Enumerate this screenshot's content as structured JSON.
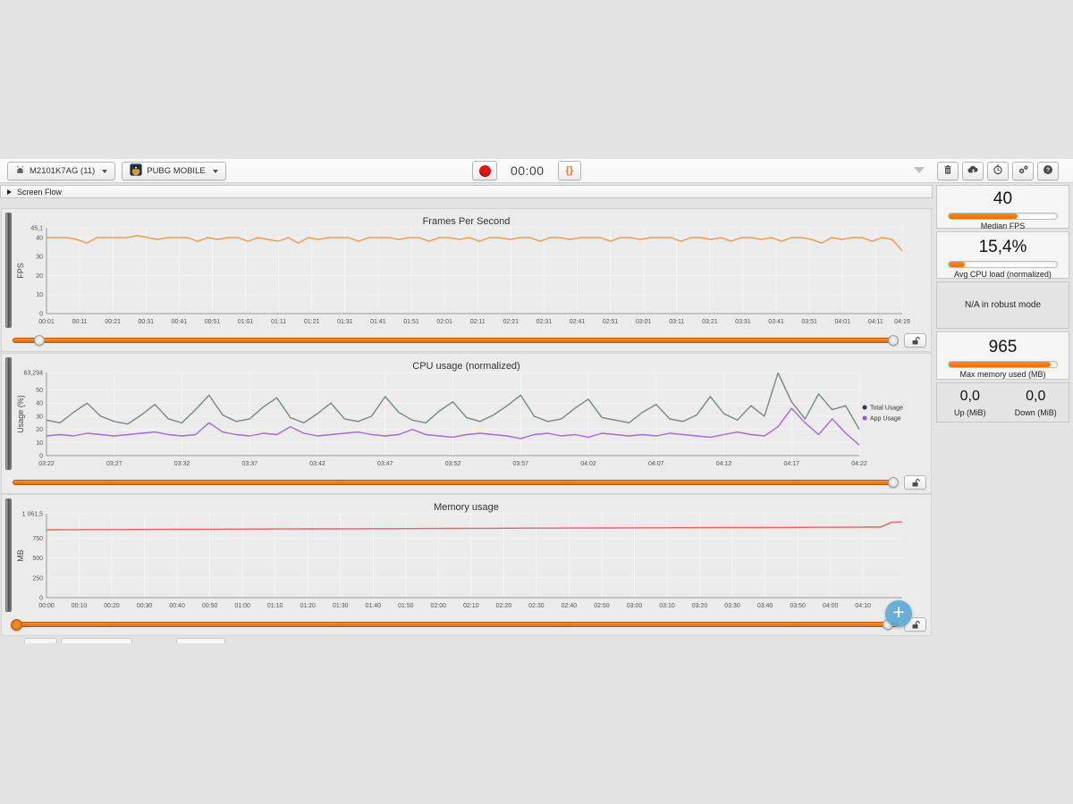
{
  "toolbar": {
    "device_label": "M2101K7AG (11)",
    "app_label": "PUBG MOBILE",
    "timer": "00:00",
    "braces_label": "{}",
    "right_icons": [
      "trash",
      "cloud-upload",
      "clock",
      "gears",
      "help"
    ]
  },
  "screen_flow": {
    "label": "Screen Flow"
  },
  "sidebar": {
    "cards": [
      {
        "value": "40",
        "label": "Median FPS",
        "progress": 64
      },
      {
        "value": "15,4%",
        "label": "Avg CPU load (normalized)",
        "progress": 15
      },
      {
        "message": "N/A in robust mode"
      },
      {
        "value": "965",
        "label": "Max memory used (MB)",
        "progress": 94
      },
      {
        "cols": [
          {
            "value": "0,0",
            "label": "Up (MiB)"
          },
          {
            "value": "0,0",
            "label": "Down (MiB)"
          }
        ]
      }
    ]
  },
  "accent_color": "#ef6c00",
  "chart_data": [
    {
      "type": "line",
      "title": "Frames Per Second",
      "ylabel": "FPS",
      "ylim": [
        0,
        45.1
      ],
      "yticks": [
        {
          "label": "45,1",
          "v": 45.1
        },
        {
          "label": "40",
          "v": 40
        },
        {
          "label": "30",
          "v": 30
        },
        {
          "label": "20",
          "v": 20
        },
        {
          "label": "10",
          "v": 10
        },
        {
          "label": "0",
          "v": 0
        }
      ],
      "xlim": [
        1,
        259
      ],
      "xticks": [
        {
          "label": "00:01",
          "t": 1
        },
        {
          "label": "00:11",
          "t": 11
        },
        {
          "label": "00:21",
          "t": 21
        },
        {
          "label": "00:31",
          "t": 31
        },
        {
          "label": "00:41",
          "t": 41
        },
        {
          "label": "00:51",
          "t": 51
        },
        {
          "label": "01:01",
          "t": 61
        },
        {
          "label": "01:11",
          "t": 71
        },
        {
          "label": "01:21",
          "t": 81
        },
        {
          "label": "01:31",
          "t": 91
        },
        {
          "label": "01:41",
          "t": 101
        },
        {
          "label": "01:51",
          "t": 111
        },
        {
          "label": "02:01",
          "t": 121
        },
        {
          "label": "02:11",
          "t": 131
        },
        {
          "label": "02:21",
          "t": 141
        },
        {
          "label": "02:31",
          "t": 151
        },
        {
          "label": "02:41",
          "t": 161
        },
        {
          "label": "02:51",
          "t": 171
        },
        {
          "label": "03:01",
          "t": 181
        },
        {
          "label": "03:11",
          "t": 191
        },
        {
          "label": "03:21",
          "t": 201
        },
        {
          "label": "03:31",
          "t": 211
        },
        {
          "label": "03:41",
          "t": 221
        },
        {
          "label": "03:51",
          "t": 231
        },
        {
          "label": "04:01",
          "t": 241
        },
        {
          "label": "04:11",
          "t": 251
        },
        {
          "label": "04:19",
          "t": 259
        }
      ],
      "grid": true,
      "legend": null,
      "series": [
        {
          "name": "FPS",
          "color": "#f79646",
          "values": [
            40,
            40,
            40,
            39,
            37,
            40,
            40,
            40,
            40,
            41,
            40,
            39,
            40,
            40,
            40,
            38,
            40,
            39,
            40,
            40,
            38,
            40,
            39,
            38,
            40,
            37,
            40,
            39,
            40,
            40,
            40,
            38,
            40,
            40,
            40,
            39,
            40,
            40,
            38,
            40,
            40,
            39,
            40,
            38,
            40,
            40,
            39,
            40,
            40,
            38,
            40,
            40,
            39,
            40,
            40,
            40,
            38,
            40,
            40,
            39,
            40,
            40,
            40,
            38,
            40,
            40,
            39,
            40,
            38,
            40,
            40,
            39,
            40,
            38,
            40,
            40,
            39,
            37,
            40,
            39,
            40,
            40,
            38,
            40,
            39,
            33
          ]
        }
      ]
    },
    {
      "type": "line",
      "title": "CPU usage (normalized)",
      "ylabel": "Usage (%)",
      "ylim": [
        0,
        63.294
      ],
      "yticks": [
        {
          "label": "63,294",
          "v": 63.294
        },
        {
          "label": "50",
          "v": 50
        },
        {
          "label": "40",
          "v": 40
        },
        {
          "label": "30",
          "v": 30
        },
        {
          "label": "20",
          "v": 20
        },
        {
          "label": "10",
          "v": 10
        },
        {
          "label": "0",
          "v": 0
        }
      ],
      "xlim": [
        202,
        262
      ],
      "xticks": [
        {
          "label": "03:22",
          "t": 202
        },
        {
          "label": "03:27",
          "t": 207
        },
        {
          "label": "03:32",
          "t": 212
        },
        {
          "label": "03:37",
          "t": 217
        },
        {
          "label": "03:42",
          "t": 222
        },
        {
          "label": "03:47",
          "t": 227
        },
        {
          "label": "03:52",
          "t": 232
        },
        {
          "label": "03:57",
          "t": 237
        },
        {
          "label": "04:02",
          "t": 242
        },
        {
          "label": "04:07",
          "t": 247
        },
        {
          "label": "04:12",
          "t": 252
        },
        {
          "label": "04:17",
          "t": 257
        },
        {
          "label": "04:22",
          "t": 262
        }
      ],
      "grid": true,
      "legend": [
        {
          "label": "Total Usage",
          "dot": "#2d3a44"
        },
        {
          "label": "App Usage",
          "dot": "#9e50d8"
        }
      ],
      "series": [
        {
          "name": "Total Usage",
          "color": "#778787",
          "values": [
            27,
            25,
            33,
            40,
            30,
            26,
            24,
            31,
            39,
            28,
            25,
            35,
            46,
            31,
            26,
            28,
            37,
            44,
            29,
            25,
            32,
            40,
            28,
            26,
            30,
            45,
            33,
            27,
            25,
            34,
            41,
            29,
            26,
            31,
            38,
            46,
            30,
            26,
            28,
            36,
            43,
            29,
            27,
            25,
            33,
            39,
            28,
            26,
            31,
            45,
            32,
            27,
            38,
            30,
            63,
            41,
            28,
            47,
            35,
            38,
            20
          ]
        },
        {
          "name": "App Usage",
          "color": "#a866e0",
          "values": [
            15,
            16,
            15,
            17,
            16,
            15,
            16,
            17,
            18,
            16,
            15,
            16,
            25,
            18,
            16,
            15,
            17,
            16,
            22,
            17,
            15,
            16,
            17,
            18,
            16,
            15,
            16,
            20,
            16,
            15,
            14,
            16,
            17,
            16,
            15,
            13,
            16,
            17,
            15,
            16,
            14,
            17,
            16,
            15,
            16,
            15,
            17,
            16,
            15,
            14,
            16,
            18,
            16,
            15,
            22,
            36,
            25,
            16,
            28,
            17,
            8
          ]
        }
      ]
    },
    {
      "type": "line",
      "title": "Memory usage",
      "ylabel": "MB",
      "ylim": [
        0,
        1061.5
      ],
      "yticks": [
        {
          "label": "1 061,5",
          "v": 1061.5
        },
        {
          "label": "750",
          "v": 750
        },
        {
          "label": "500",
          "v": 500
        },
        {
          "label": "250",
          "v": 250
        },
        {
          "label": "0",
          "v": 0
        }
      ],
      "xlim": [
        0,
        262
      ],
      "xticks": [
        {
          "label": "00:00",
          "t": 0
        },
        {
          "label": "00:10",
          "t": 10
        },
        {
          "label": "00:20",
          "t": 20
        },
        {
          "label": "00:30",
          "t": 30
        },
        {
          "label": "00:40",
          "t": 40
        },
        {
          "label": "00:50",
          "t": 50
        },
        {
          "label": "01:00",
          "t": 60
        },
        {
          "label": "01:10",
          "t": 70
        },
        {
          "label": "01:20",
          "t": 80
        },
        {
          "label": "01:30",
          "t": 90
        },
        {
          "label": "01:40",
          "t": 100
        },
        {
          "label": "01:50",
          "t": 110
        },
        {
          "label": "02:00",
          "t": 120
        },
        {
          "label": "02:10",
          "t": 130
        },
        {
          "label": "02:20",
          "t": 140
        },
        {
          "label": "02:30",
          "t": 150
        },
        {
          "label": "02:40",
          "t": 160
        },
        {
          "label": "02:50",
          "t": 170
        },
        {
          "label": "03:00",
          "t": 180
        },
        {
          "label": "03:10",
          "t": 190
        },
        {
          "label": "03:20",
          "t": 200
        },
        {
          "label": "03:30",
          "t": 210
        },
        {
          "label": "03:40",
          "t": 220
        },
        {
          "label": "03:50",
          "t": 230
        },
        {
          "label": "04:00",
          "t": 240
        },
        {
          "label": "04:10",
          "t": 250
        }
      ],
      "grid": true,
      "legend": null,
      "series": [
        {
          "name": "Memory",
          "color": "#ed5f64",
          "values": [
            858,
            858,
            859,
            859,
            860,
            860,
            861,
            861,
            862,
            862,
            863,
            863,
            864,
            864,
            864,
            865,
            865,
            866,
            866,
            867,
            867,
            868,
            868,
            868,
            869,
            869,
            870,
            870,
            871,
            871,
            872,
            872,
            872,
            873,
            873,
            874,
            874,
            875,
            875,
            876,
            876,
            876,
            877,
            877,
            878,
            878,
            879,
            879,
            880,
            880,
            880,
            881,
            881,
            882,
            882,
            883,
            883,
            883,
            884,
            884,
            885,
            885,
            886,
            886,
            886,
            887,
            887,
            888,
            888,
            889,
            889,
            890,
            890,
            890,
            891,
            891,
            892,
            892,
            952,
            956
          ]
        }
      ]
    }
  ]
}
